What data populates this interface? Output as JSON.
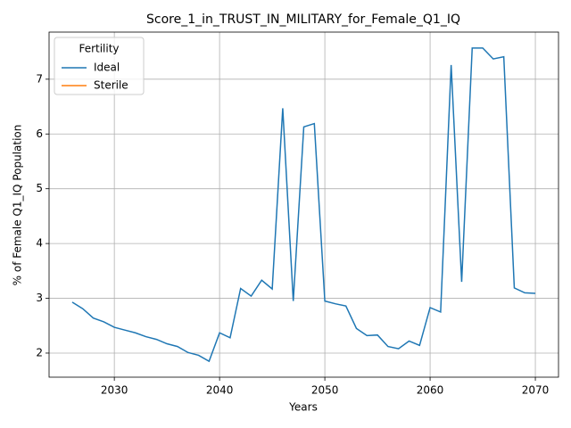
{
  "chart_data": {
    "type": "line",
    "title": "Score_1_in_TRUST_IN_MILITARY_for_Female_Q1_IQ",
    "x_label": "Years",
    "y_label": "% of Female Q1_IQ Population",
    "legend_title": "Fertility",
    "legend_position": "upper left",
    "grid": true,
    "x": [
      2026,
      2027,
      2028,
      2029,
      2030,
      2031,
      2032,
      2033,
      2034,
      2035,
      2036,
      2037,
      2038,
      2039,
      2040,
      2041,
      2042,
      2043,
      2044,
      2045,
      2046,
      2047,
      2048,
      2049,
      2050,
      2051,
      2052,
      2053,
      2054,
      2055,
      2056,
      2057,
      2058,
      2059,
      2060,
      2061,
      2062,
      2063,
      2064,
      2065,
      2066,
      2067,
      2068,
      2069,
      2070
    ],
    "series": [
      {
        "name": "Ideal",
        "color": "#1f77b4",
        "values": [
          2.93,
          2.81,
          2.64,
          2.57,
          2.47,
          2.42,
          2.37,
          2.3,
          2.25,
          2.17,
          2.12,
          2.01,
          1.96,
          1.85,
          2.37,
          2.28,
          3.18,
          3.04,
          3.33,
          3.17,
          6.47,
          2.95,
          6.13,
          6.19,
          2.95,
          2.9,
          2.86,
          2.45,
          2.32,
          2.33,
          2.12,
          2.08,
          2.22,
          2.14,
          2.83,
          2.75,
          7.26,
          3.3,
          7.57,
          7.57,
          7.37,
          7.41,
          3.19,
          3.1,
          3.09
        ]
      },
      {
        "name": "Sterile",
        "color": "#ff7f0e",
        "values": [
          null,
          null,
          null,
          null,
          null,
          null,
          null,
          null,
          null,
          null,
          null,
          null,
          null,
          null,
          null,
          null,
          null,
          null,
          null,
          null,
          null,
          null,
          null,
          null,
          null,
          null,
          null,
          null,
          null,
          null,
          null,
          null,
          null,
          null,
          null,
          null,
          null,
          null,
          null,
          null,
          null,
          null,
          null,
          null,
          null
        ]
      }
    ],
    "xlim": [
      2023.8,
      2072.2
    ],
    "xticks": [
      2030,
      2040,
      2050,
      2060,
      2070
    ],
    "ylim": [
      1.56,
      7.86
    ],
    "yticks": [
      2,
      3,
      4,
      5,
      6,
      7
    ]
  }
}
